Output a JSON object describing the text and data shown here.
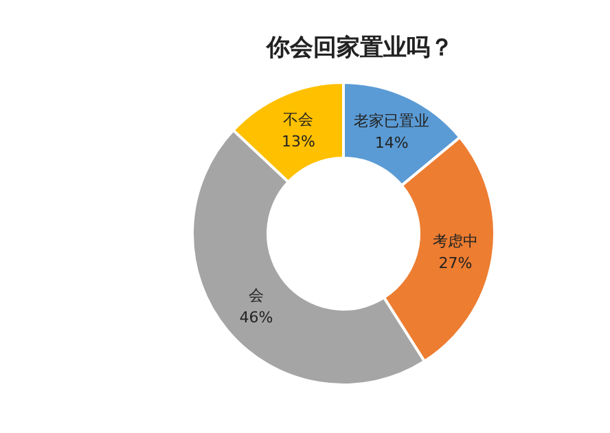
{
  "chart_data": {
    "type": "donut",
    "title": "你会回家置业吗？",
    "categories": [
      "老家已置业",
      "考虑中",
      "会",
      "不会"
    ],
    "values": [
      14,
      27,
      46,
      13
    ],
    "colors": [
      "#5b9bd5",
      "#ed7d31",
      "#a5a5a5",
      "#ffc000"
    ],
    "value_labels": [
      "14%",
      "27%",
      "46%",
      "13%"
    ]
  }
}
